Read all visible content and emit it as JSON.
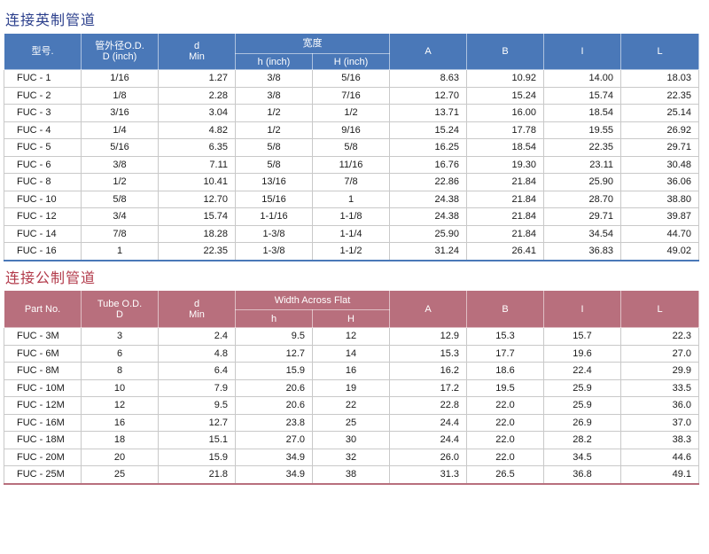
{
  "imperial": {
    "title": "连接英制管道",
    "headers": {
      "part": "型号.",
      "od_line1": "管外径O.D.",
      "od_line2": "D (inch)",
      "d_line1": "d",
      "d_line2": "Min",
      "width_group": "宽度",
      "h": "h (inch)",
      "H": "H (inch)",
      "A": "A",
      "B": "B",
      "I": "I",
      "L": "L"
    },
    "rows": [
      [
        "FUC -  1",
        "1/16",
        "1.27",
        "3/8",
        "5/16",
        "8.63",
        "10.92",
        "14.00",
        "18.03"
      ],
      [
        "FUC -  2",
        "1/8",
        "2.28",
        "3/8",
        "7/16",
        "12.70",
        "15.24",
        "15.74",
        "22.35"
      ],
      [
        "FUC -  3",
        "3/16",
        "3.04",
        "1/2",
        "1/2",
        "13.71",
        "16.00",
        "18.54",
        "25.14"
      ],
      [
        "FUC -  4",
        "1/4",
        "4.82",
        "1/2",
        "9/16",
        "15.24",
        "17.78",
        "19.55",
        "26.92"
      ],
      [
        "FUC -  5",
        "5/16",
        "6.35",
        "5/8",
        "5/8",
        "16.25",
        "18.54",
        "22.35",
        "29.71"
      ],
      [
        "FUC -  6",
        "3/8",
        "7.11",
        "5/8",
        "11/16",
        "16.76",
        "19.30",
        "23.11",
        "30.48"
      ],
      [
        "FUC -  8",
        "1/2",
        "10.41",
        "13/16",
        "7/8",
        "22.86",
        "21.84",
        "25.90",
        "36.06"
      ],
      [
        "FUC - 10",
        "5/8",
        "12.70",
        "15/16",
        "1",
        "24.38",
        "21.84",
        "28.70",
        "38.80"
      ],
      [
        "FUC - 12",
        "3/4",
        "15.74",
        "1-1/16",
        "1-1/8",
        "24.38",
        "21.84",
        "29.71",
        "39.87"
      ],
      [
        "FUC - 14",
        "7/8",
        "18.28",
        "1-3/8",
        "1-1/4",
        "25.90",
        "21.84",
        "34.54",
        "44.70"
      ],
      [
        "FUC - 16",
        "1",
        "22.35",
        "1-3/8",
        "1-1/2",
        "31.24",
        "26.41",
        "36.83",
        "49.02"
      ]
    ]
  },
  "metric": {
    "title": "连接公制管道",
    "headers": {
      "part": "Part No.",
      "od_line1": "Tube O.D.",
      "od_line2": "D",
      "d_line1": "d",
      "d_line2": "Min",
      "width_group": "Width Across Flat",
      "h": "h",
      "H": "H",
      "A": "A",
      "B": "B",
      "I": "I",
      "L": "L"
    },
    "rows": [
      [
        "FUC -  3M",
        "3",
        "2.4",
        "9.5",
        "12",
        "12.9",
        "15.3",
        "15.7",
        "22.3"
      ],
      [
        "FUC -  6M",
        "6",
        "4.8",
        "12.7",
        "14",
        "15.3",
        "17.7",
        "19.6",
        "27.0"
      ],
      [
        "FUC -  8M",
        "8",
        "6.4",
        "15.9",
        "16",
        "16.2",
        "18.6",
        "22.4",
        "29.9"
      ],
      [
        "FUC - 10M",
        "10",
        "7.9",
        "20.6",
        "19",
        "17.2",
        "19.5",
        "25.9",
        "33.5"
      ],
      [
        "FUC - 12M",
        "12",
        "9.5",
        "20.6",
        "22",
        "22.8",
        "22.0",
        "25.9",
        "36.0"
      ],
      [
        "FUC - 16M",
        "16",
        "12.7",
        "23.8",
        "25",
        "24.4",
        "22.0",
        "26.9",
        "37.0"
      ],
      [
        "FUC - 18M",
        "18",
        "15.1",
        "27.0",
        "30",
        "24.4",
        "22.0",
        "28.2",
        "38.3"
      ],
      [
        "FUC - 20M",
        "20",
        "15.9",
        "34.9",
        "32",
        "26.0",
        "22.0",
        "34.5",
        "44.6"
      ],
      [
        "FUC - 25M",
        "25",
        "21.8",
        "34.9",
        "38",
        "31.3",
        "26.5",
        "36.8",
        "49.1"
      ]
    ]
  },
  "colors": {
    "imperial_header": "#4a78b8",
    "imperial_title": "#2b3f8c",
    "metric_header": "#b86f7d",
    "metric_title": "#b23a4a"
  }
}
